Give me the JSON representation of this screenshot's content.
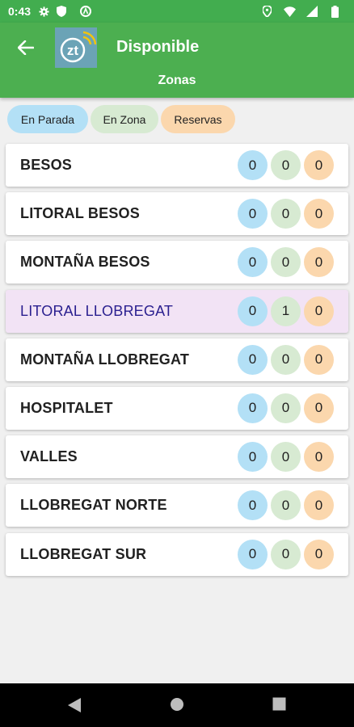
{
  "status_bar": {
    "time": "0:43"
  },
  "app_bar": {
    "logo_text": "zt",
    "title": "Disponible",
    "subtitle": "Zonas"
  },
  "legend": [
    {
      "label": "En Parada",
      "color": "#b3e0f6"
    },
    {
      "label": "En Zona",
      "color": "#d7ead2"
    },
    {
      "label": "Reservas",
      "color": "#fbd7ad"
    }
  ],
  "zones": [
    {
      "name": "BESOS",
      "en_parada": "0",
      "en_zona": "0",
      "reservas": "0",
      "selected": false
    },
    {
      "name": "LITORAL BESOS",
      "en_parada": "0",
      "en_zona": "0",
      "reservas": "0",
      "selected": false
    },
    {
      "name": "MONTAÑA BESOS",
      "en_parada": "0",
      "en_zona": "0",
      "reservas": "0",
      "selected": false
    },
    {
      "name": "LITORAL LLOBREGAT",
      "en_parada": "0",
      "en_zona": "1",
      "reservas": "0",
      "selected": true
    },
    {
      "name": "MONTAÑA LLOBREGAT",
      "en_parada": "0",
      "en_zona": "0",
      "reservas": "0",
      "selected": false
    },
    {
      "name": "HOSPITALET",
      "en_parada": "0",
      "en_zona": "0",
      "reservas": "0",
      "selected": false
    },
    {
      "name": "VALLES",
      "en_parada": "0",
      "en_zona": "0",
      "reservas": "0",
      "selected": false
    },
    {
      "name": "LLOBREGAT NORTE",
      "en_parada": "0",
      "en_zona": "0",
      "reservas": "0",
      "selected": false
    },
    {
      "name": "LLOBREGAT SUR",
      "en_parada": "0",
      "en_zona": "0",
      "reservas": "0",
      "selected": false
    }
  ],
  "colors": {
    "status_bar": "#42ad4f",
    "app_bar": "#4caf50",
    "selected_row": "#f2e3f5",
    "selected_text": "#2a1f8f"
  },
  "icons": {
    "status": [
      "gear-icon",
      "shield-icon",
      "circle-a-icon",
      "location-icon",
      "wifi-icon",
      "signal-icon",
      "battery-icon"
    ],
    "nav": [
      "back-triangle-icon",
      "home-circle-icon",
      "recents-square-icon"
    ]
  }
}
